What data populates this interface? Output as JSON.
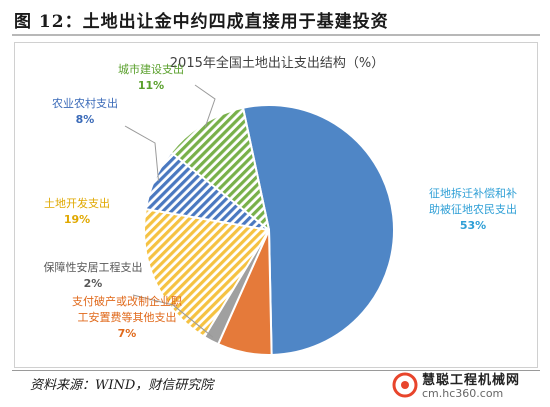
{
  "figure": {
    "title": "图 12：土地出让金中约四成直接用于基建投资",
    "source": "资料来源：WIND，财信研究院"
  },
  "brand": {
    "name": "慧聪工程机械网",
    "url": "cm.hc360.com",
    "accent": "#e8452c"
  },
  "chart_data": {
    "type": "pie",
    "title": "2015年全国土地出让支出结构（%）",
    "slices": [
      {
        "label": "征地拆迁补偿和补助被征地农民支出",
        "label_lines": [
          "征地拆迁补偿和补",
          "助被征地农民支出"
        ],
        "value": 53,
        "value_label": "53%",
        "color": "#4f86c6",
        "pattern": "solid",
        "label_color": "#2e9fd6"
      },
      {
        "label": "支付破产或改制企业职工安置费等其他支出",
        "label_lines": [
          "支付破产或改制企业职",
          "工安置费等其他支出"
        ],
        "value": 7,
        "value_label": "7%",
        "color": "#e57a3a",
        "pattern": "solid",
        "label_color": "#e06a1c"
      },
      {
        "label": "保障性安居工程支出",
        "label_lines": [
          "保障性安居工程支出"
        ],
        "value": 2,
        "value_label": "2%",
        "color": "#a0a0a0",
        "pattern": "solid",
        "label_color": "#595959"
      },
      {
        "label": "土地开发支出",
        "label_lines": [
          "土地开发支出"
        ],
        "value": 19,
        "value_label": "19%",
        "color": "#f5c242",
        "pattern": "stripes",
        "label_color": "#e0a800"
      },
      {
        "label": "农业农村支出",
        "label_lines": [
          "农业农村支出"
        ],
        "value": 8,
        "value_label": "8%",
        "color": "#4a78c0",
        "pattern": "stripes",
        "label_color": "#3a6ab8"
      },
      {
        "label": "城市建设支出",
        "label_lines": [
          "城市建设支出"
        ],
        "value": 11,
        "value_label": "11%",
        "color": "#78b04a",
        "pattern": "stripes",
        "label_color": "#5aa02c"
      }
    ],
    "legend": "none"
  }
}
